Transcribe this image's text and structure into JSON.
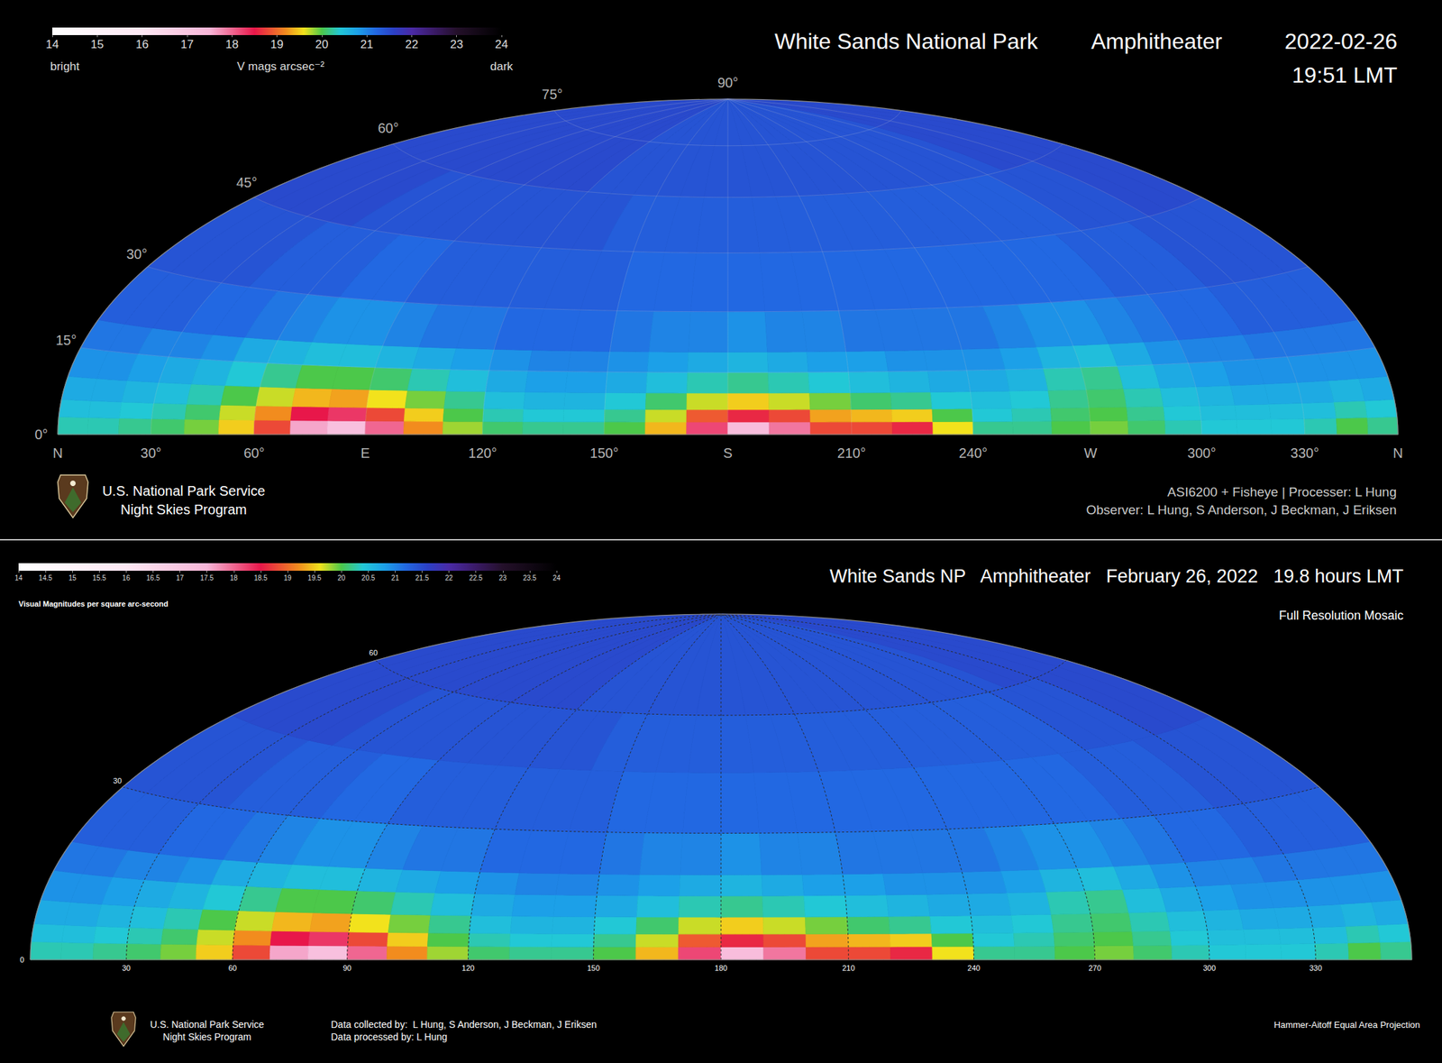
{
  "chart_data": [
    {
      "type": "heatmap",
      "title": "White Sands National Park",
      "location": "Amphitheater",
      "date": "2022-02-26",
      "time": "19:51 LMT",
      "xlim": [
        0,
        360
      ],
      "ylim": [
        0,
        90
      ],
      "xticks": [
        {
          "value": 0,
          "label": "N"
        },
        {
          "value": 30,
          "label": "30°"
        },
        {
          "value": 60,
          "label": "60°"
        },
        {
          "value": 90,
          "label": "E"
        },
        {
          "value": 120,
          "label": "120°"
        },
        {
          "value": 150,
          "label": "150°"
        },
        {
          "value": 180,
          "label": "S"
        },
        {
          "value": 210,
          "label": "210°"
        },
        {
          "value": 240,
          "label": "240°"
        },
        {
          "value": 270,
          "label": "W"
        },
        {
          "value": 300,
          "label": "300°"
        },
        {
          "value": 330,
          "label": "330°"
        },
        {
          "value": 360,
          "label": "N"
        }
      ],
      "yticks": [
        {
          "value": 0,
          "label": "0°"
        },
        {
          "value": 15,
          "label": "15°"
        },
        {
          "value": 30,
          "label": "30°"
        },
        {
          "value": 45,
          "label": "45°"
        },
        {
          "value": 60,
          "label": "60°"
        },
        {
          "value": 75,
          "label": "75°"
        },
        {
          "value": 90,
          "label": "90°"
        }
      ],
      "grid": true,
      "colorbar": {
        "range": [
          14,
          24
        ],
        "ticks": [
          14,
          15,
          16,
          17,
          18,
          19,
          20,
          21,
          22,
          23,
          24
        ],
        "label": "V mags arcsec⁻²",
        "low_label": "bright",
        "high_label": "dark"
      },
      "az_edges": [
        0,
        10,
        20,
        30,
        40,
        50,
        60,
        70,
        80,
        90,
        100,
        110,
        120,
        130,
        140,
        150,
        160,
        170,
        180,
        190,
        200,
        210,
        220,
        230,
        240,
        250,
        260,
        270,
        280,
        290,
        300,
        310,
        320,
        330,
        340,
        350,
        360
      ],
      "alt_edges": [
        0,
        3,
        6,
        10,
        15,
        20,
        30,
        45,
        60,
        90
      ],
      "cells": [
        [
          20.3,
          20.3,
          20.2,
          20.1,
          19.9,
          19.5,
          18.8,
          17.6,
          17.2,
          18.0,
          19.2,
          19.8,
          20.1,
          20.2,
          20.2,
          20.0,
          19.4,
          18.2,
          17.3,
          17.9,
          18.8,
          18.8,
          18.6,
          19.6,
          20.2,
          20.2,
          20.0,
          19.9,
          20.1,
          20.3,
          20.4,
          20.4,
          20.4,
          20.3,
          20.0,
          20.2
        ],
        [
          20.5,
          20.5,
          20.4,
          20.3,
          20.1,
          19.7,
          19.2,
          18.5,
          18.3,
          18.8,
          19.5,
          20.0,
          20.3,
          20.4,
          20.4,
          20.2,
          19.7,
          18.9,
          18.6,
          18.8,
          19.3,
          19.4,
          19.5,
          20.0,
          20.4,
          20.3,
          20.1,
          20.0,
          20.2,
          20.4,
          20.5,
          20.5,
          20.5,
          20.5,
          20.3,
          20.4
        ],
        [
          20.7,
          20.7,
          20.6,
          20.5,
          20.3,
          20.0,
          19.7,
          19.4,
          19.3,
          19.6,
          19.9,
          20.2,
          20.5,
          20.6,
          20.6,
          20.4,
          20.1,
          19.7,
          19.5,
          19.7,
          19.9,
          20.1,
          20.2,
          20.4,
          20.5,
          20.4,
          20.2,
          20.1,
          20.3,
          20.5,
          20.6,
          20.7,
          20.7,
          20.7,
          20.6,
          20.7
        ],
        [
          20.9,
          20.9,
          20.8,
          20.7,
          20.6,
          20.4,
          20.2,
          20.0,
          20.0,
          20.1,
          20.3,
          20.5,
          20.7,
          20.8,
          20.8,
          20.7,
          20.5,
          20.3,
          20.2,
          20.3,
          20.4,
          20.5,
          20.6,
          20.7,
          20.7,
          20.6,
          20.3,
          20.2,
          20.5,
          20.7,
          20.8,
          20.9,
          20.9,
          20.9,
          20.9,
          20.9
        ],
        [
          21.1,
          21.1,
          21.0,
          21.0,
          20.9,
          20.7,
          20.6,
          20.5,
          20.5,
          20.6,
          20.7,
          20.8,
          20.9,
          21.0,
          21.0,
          20.9,
          20.8,
          20.7,
          20.6,
          20.7,
          20.8,
          20.8,
          20.9,
          20.9,
          20.9,
          20.8,
          20.6,
          20.5,
          20.7,
          20.9,
          21.0,
          21.0,
          21.1,
          21.1,
          21.1,
          21.1
        ],
        [
          21.3,
          21.3,
          21.3,
          21.2,
          21.2,
          21.1,
          21.0,
          20.9,
          20.9,
          21.0,
          21.1,
          21.1,
          21.2,
          21.2,
          21.2,
          21.1,
          21.0,
          21.0,
          20.9,
          21.0,
          21.0,
          21.1,
          21.1,
          21.1,
          21.1,
          21.0,
          20.9,
          20.9,
          21.0,
          21.1,
          21.2,
          21.2,
          21.3,
          21.3,
          21.3,
          21.3
        ],
        [
          21.4,
          21.4,
          21.4,
          21.4,
          21.3,
          21.3,
          21.3,
          21.2,
          21.2,
          21.3,
          21.3,
          21.3,
          21.3,
          21.3,
          21.3,
          21.2,
          21.2,
          21.2,
          21.2,
          21.2,
          21.2,
          21.2,
          21.2,
          21.2,
          21.2,
          21.2,
          21.2,
          21.2,
          21.2,
          21.3,
          21.3,
          21.3,
          21.4,
          21.4,
          21.4,
          21.4
        ],
        [
          21.5,
          21.5,
          21.5,
          21.5,
          21.5,
          21.4,
          21.4,
          21.4,
          21.4,
          21.4,
          21.4,
          21.4,
          21.4,
          21.4,
          21.3,
          21.3,
          21.3,
          21.3,
          21.3,
          21.3,
          21.3,
          21.3,
          21.3,
          21.3,
          21.3,
          21.3,
          21.3,
          21.3,
          21.3,
          21.3,
          21.4,
          21.4,
          21.4,
          21.5,
          21.5,
          21.5
        ],
        [
          21.5,
          21.5,
          21.5,
          21.5,
          21.5,
          21.5,
          21.5,
          21.5,
          21.5,
          21.5,
          21.5,
          21.5,
          21.4,
          21.4,
          21.4,
          21.4,
          21.4,
          21.4,
          21.4,
          21.4,
          21.4,
          21.4,
          21.4,
          21.4,
          21.4,
          21.4,
          21.4,
          21.4,
          21.4,
          21.4,
          21.4,
          21.5,
          21.5,
          21.5,
          21.5,
          21.5
        ]
      ],
      "credits": [
        "ASI6200 + Fisheye | Processer: L Hung",
        "Observer: L Hung, S Anderson, J Beckman, J Eriksen"
      ],
      "agency": [
        "U.S. National Park Service",
        "Night Skies Program"
      ]
    },
    {
      "type": "heatmap",
      "title": "White Sands NP",
      "location": "Amphitheater",
      "date": "February 26, 2022",
      "time": "19.8 hours LMT",
      "subtitle": "Full Resolution Mosaic",
      "xlim": [
        0,
        360
      ],
      "ylim": [
        0,
        90
      ],
      "xticks": [
        30,
        60,
        90,
        120,
        150,
        180,
        210,
        240,
        270,
        300,
        330
      ],
      "yticks": [
        0,
        30,
        60
      ],
      "grid": true,
      "colorbar": {
        "range": [
          14,
          24
        ],
        "ticks": [
          14,
          14.5,
          15,
          15.5,
          16,
          16.5,
          17,
          17.5,
          18,
          18.5,
          19,
          19.5,
          20,
          20.5,
          21,
          21.5,
          22,
          22.5,
          23,
          23.5,
          24
        ],
        "label": "Visual Magnitudes per square arc-second"
      },
      "az_edges": [
        0,
        10,
        20,
        30,
        40,
        50,
        60,
        70,
        80,
        90,
        100,
        110,
        120,
        130,
        140,
        150,
        160,
        170,
        180,
        190,
        200,
        210,
        220,
        230,
        240,
        250,
        260,
        270,
        280,
        290,
        300,
        310,
        320,
        330,
        340,
        350,
        360
      ],
      "alt_edges": [
        0,
        3,
        6,
        10,
        15,
        20,
        30,
        45,
        60,
        90
      ],
      "cells": [
        [
          20.3,
          20.3,
          20.2,
          20.1,
          19.9,
          19.5,
          18.8,
          17.6,
          17.2,
          18.0,
          19.2,
          19.8,
          20.1,
          20.2,
          20.2,
          20.0,
          19.4,
          18.2,
          17.3,
          17.9,
          18.8,
          18.8,
          18.6,
          19.6,
          20.2,
          20.2,
          20.0,
          19.9,
          20.1,
          20.3,
          20.4,
          20.4,
          20.4,
          20.3,
          20.0,
          20.2
        ],
        [
          20.5,
          20.5,
          20.4,
          20.3,
          20.1,
          19.7,
          19.2,
          18.5,
          18.3,
          18.8,
          19.5,
          20.0,
          20.3,
          20.4,
          20.4,
          20.2,
          19.7,
          18.9,
          18.6,
          18.8,
          19.3,
          19.4,
          19.5,
          20.0,
          20.4,
          20.3,
          20.1,
          20.0,
          20.2,
          20.4,
          20.5,
          20.5,
          20.5,
          20.5,
          20.3,
          20.4
        ],
        [
          20.7,
          20.7,
          20.6,
          20.5,
          20.3,
          20.0,
          19.7,
          19.4,
          19.3,
          19.6,
          19.9,
          20.2,
          20.5,
          20.6,
          20.6,
          20.4,
          20.1,
          19.7,
          19.5,
          19.7,
          19.9,
          20.1,
          20.2,
          20.4,
          20.5,
          20.4,
          20.2,
          20.1,
          20.3,
          20.5,
          20.6,
          20.7,
          20.7,
          20.7,
          20.6,
          20.7
        ],
        [
          20.9,
          20.9,
          20.8,
          20.7,
          20.6,
          20.4,
          20.2,
          20.0,
          20.0,
          20.1,
          20.3,
          20.5,
          20.7,
          20.8,
          20.8,
          20.7,
          20.5,
          20.3,
          20.2,
          20.3,
          20.4,
          20.5,
          20.6,
          20.7,
          20.7,
          20.6,
          20.3,
          20.2,
          20.5,
          20.7,
          20.8,
          20.9,
          20.9,
          20.9,
          20.9,
          20.9
        ],
        [
          21.1,
          21.1,
          21.0,
          21.0,
          20.9,
          20.7,
          20.6,
          20.5,
          20.5,
          20.6,
          20.7,
          20.8,
          20.9,
          21.0,
          21.0,
          20.9,
          20.8,
          20.7,
          20.6,
          20.7,
          20.8,
          20.8,
          20.9,
          20.9,
          20.9,
          20.8,
          20.6,
          20.5,
          20.7,
          20.9,
          21.0,
          21.0,
          21.1,
          21.1,
          21.1,
          21.1
        ],
        [
          21.3,
          21.3,
          21.3,
          21.2,
          21.2,
          21.1,
          21.0,
          20.9,
          20.9,
          21.0,
          21.1,
          21.1,
          21.2,
          21.2,
          21.2,
          21.1,
          21.0,
          21.0,
          20.9,
          21.0,
          21.0,
          21.1,
          21.1,
          21.1,
          21.1,
          21.0,
          20.9,
          20.9,
          21.0,
          21.1,
          21.2,
          21.2,
          21.3,
          21.3,
          21.3,
          21.3
        ],
        [
          21.4,
          21.4,
          21.4,
          21.4,
          21.3,
          21.3,
          21.3,
          21.2,
          21.2,
          21.3,
          21.3,
          21.3,
          21.3,
          21.3,
          21.3,
          21.2,
          21.2,
          21.2,
          21.2,
          21.2,
          21.2,
          21.2,
          21.2,
          21.2,
          21.2,
          21.2,
          21.2,
          21.2,
          21.2,
          21.3,
          21.3,
          21.3,
          21.4,
          21.4,
          21.4,
          21.4
        ],
        [
          21.5,
          21.5,
          21.5,
          21.5,
          21.5,
          21.4,
          21.4,
          21.4,
          21.4,
          21.4,
          21.4,
          21.4,
          21.4,
          21.4,
          21.3,
          21.3,
          21.3,
          21.3,
          21.3,
          21.3,
          21.3,
          21.3,
          21.3,
          21.3,
          21.3,
          21.3,
          21.3,
          21.3,
          21.3,
          21.3,
          21.4,
          21.4,
          21.4,
          21.5,
          21.5,
          21.5
        ],
        [
          21.5,
          21.5,
          21.5,
          21.5,
          21.5,
          21.5,
          21.5,
          21.5,
          21.5,
          21.5,
          21.5,
          21.5,
          21.4,
          21.4,
          21.4,
          21.4,
          21.4,
          21.4,
          21.4,
          21.4,
          21.4,
          21.4,
          21.4,
          21.4,
          21.4,
          21.4,
          21.4,
          21.4,
          21.4,
          21.4,
          21.4,
          21.5,
          21.5,
          21.5,
          21.5,
          21.5
        ]
      ],
      "credits": [
        "Data collected by:  L Hung, S Anderson, J Beckman, J Eriksen",
        "Data processed by: L Hung"
      ],
      "projection": "Hammer-Aitoff Equal Area Projection",
      "agency": [
        "U.S. National Park Service",
        "Night Skies Program"
      ]
    }
  ]
}
